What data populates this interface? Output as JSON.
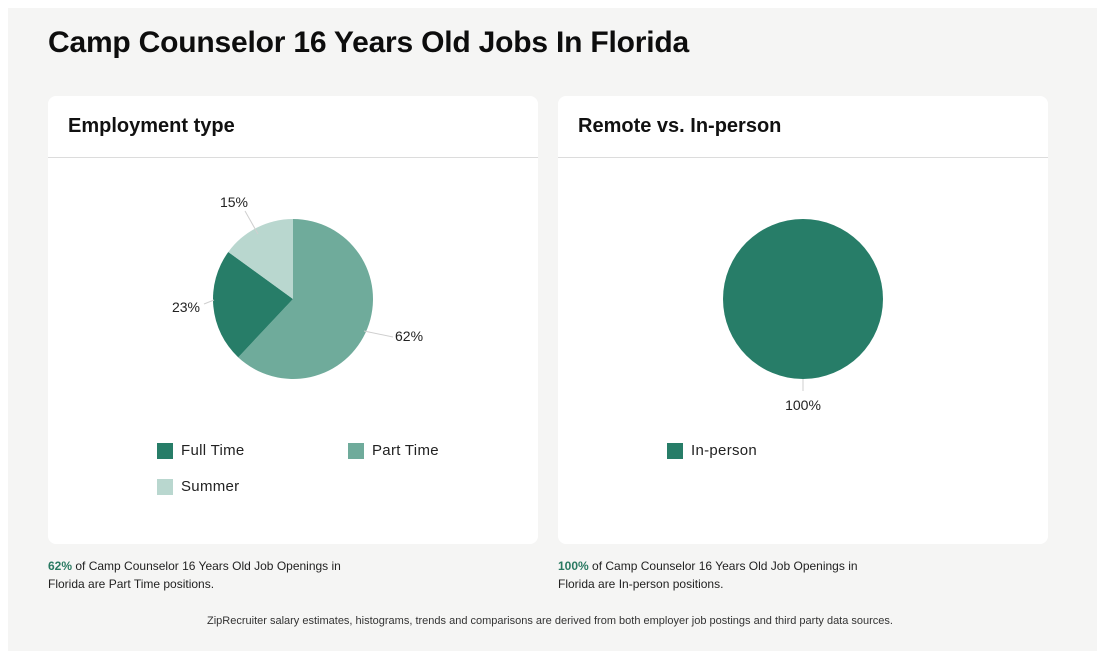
{
  "page": {
    "title": "Camp Counselor 16 Years Old Jobs In Florida"
  },
  "colors": {
    "full_time": "#277d68",
    "part_time": "#6fab9b",
    "summer": "#b9d7cf",
    "in_person": "#277d68",
    "caption_accent": "#2a7a62"
  },
  "cards": {
    "employment": {
      "title": "Employment type"
    },
    "remote": {
      "title": "Remote vs. In-person"
    }
  },
  "chart_data": [
    {
      "type": "pie",
      "title": "Employment type",
      "labels": [
        "Full Time",
        "Part Time",
        "Summer"
      ],
      "values": [
        23,
        62,
        15
      ],
      "value_labels": [
        "23%",
        "62%",
        "15%"
      ],
      "legend_position": "bottom"
    },
    {
      "type": "pie",
      "title": "Remote vs. In-person",
      "labels": [
        "In-person"
      ],
      "values": [
        100
      ],
      "value_labels": [
        "100%"
      ],
      "legend_position": "bottom"
    }
  ],
  "captions": {
    "left": {
      "pct": "62%",
      "text": " of Camp Counselor 16 Years Old Job Openings in Florida are Part Time positions."
    },
    "right": {
      "pct": "100%",
      "text": " of Camp Counselor 16 Years Old Job Openings in Florida are In-person positions."
    }
  },
  "footer": {
    "text": "ZipRecruiter salary estimates, histograms, trends and comparisons are derived from both employer job postings and third party data sources."
  }
}
